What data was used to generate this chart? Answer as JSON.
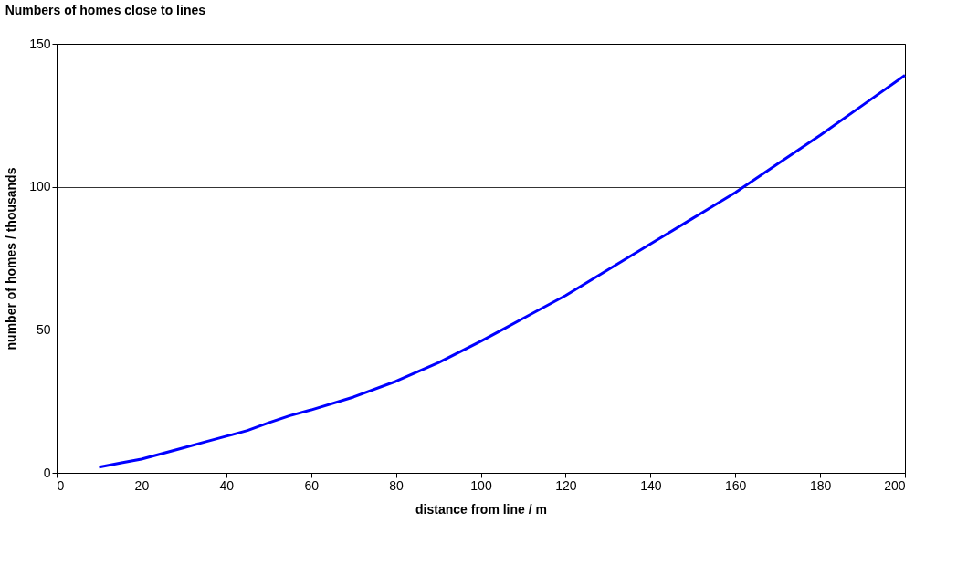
{
  "chart_data": {
    "type": "line",
    "title": "Numbers of homes close to lines",
    "xlabel": "distance from line  /  m",
    "ylabel": "number of homes  /  thousands",
    "x": [
      10,
      15,
      20,
      25,
      30,
      35,
      40,
      45,
      50,
      55,
      60,
      70,
      80,
      90,
      100,
      105,
      110,
      120,
      130,
      140,
      150,
      160,
      170,
      180,
      190,
      200
    ],
    "series": [
      {
        "color": "#0000ff",
        "values": [
          2,
          3.4,
          4.8,
          6.8,
          8.8,
          10.8,
          12.8,
          14.8,
          17.5,
          20,
          22,
          26.5,
          32,
          38.5,
          46,
          50,
          54,
          62,
          71,
          80,
          89,
          98,
          108,
          118,
          128.5,
          139
        ]
      }
    ],
    "xlim": [
      0,
      200
    ],
    "xticks": [
      0,
      20,
      40,
      60,
      80,
      100,
      120,
      140,
      160,
      180,
      200
    ],
    "ylim": [
      0,
      150
    ],
    "yticks": [
      0,
      50,
      100,
      150
    ],
    "grid": "y",
    "legend": false,
    "marker": "none",
    "line_style": "solid"
  }
}
